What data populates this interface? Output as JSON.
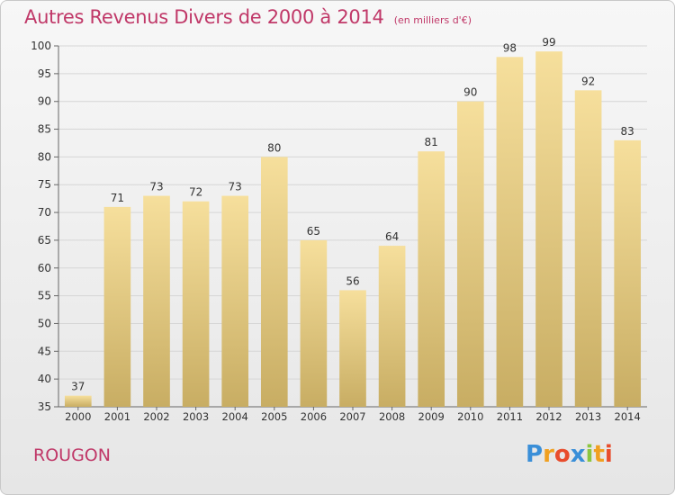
{
  "title": "Autres Revenus Divers de 2000 à 2014",
  "subtitle": "(en milliers d'€)",
  "place": "ROUGON",
  "logo": {
    "letters": [
      {
        "ch": "P",
        "color": "#3a8fd8"
      },
      {
        "ch": "r",
        "color": "#f0a020"
      },
      {
        "ch": "o",
        "color": "#e84c2c"
      },
      {
        "ch": "x",
        "color": "#3a8fd8"
      },
      {
        "ch": "i",
        "color": "#8cc63f"
      },
      {
        "ch": "t",
        "color": "#f0a020"
      },
      {
        "ch": "i",
        "color": "#e84c2c"
      }
    ]
  },
  "colors": {
    "accent": "#c03868",
    "bar_top": "#f6df9c",
    "bar_bottom": "#c8ad63",
    "grid": "#d6d6d6"
  },
  "chart_data": {
    "type": "bar",
    "title": "Autres Revenus Divers de 2000 à 2014",
    "xlabel": "",
    "ylabel": "",
    "categories": [
      "2000",
      "2001",
      "2002",
      "2003",
      "2004",
      "2005",
      "2006",
      "2007",
      "2008",
      "2009",
      "2010",
      "2011",
      "2012",
      "2013",
      "2014"
    ],
    "values": [
      37,
      71,
      73,
      72,
      73,
      80,
      65,
      56,
      64,
      81,
      90,
      98,
      99,
      92,
      83
    ],
    "ylim": [
      35,
      100
    ],
    "yticks": [
      35,
      40,
      45,
      50,
      55,
      60,
      65,
      70,
      75,
      80,
      85,
      90,
      95,
      100
    ],
    "grid": true
  }
}
